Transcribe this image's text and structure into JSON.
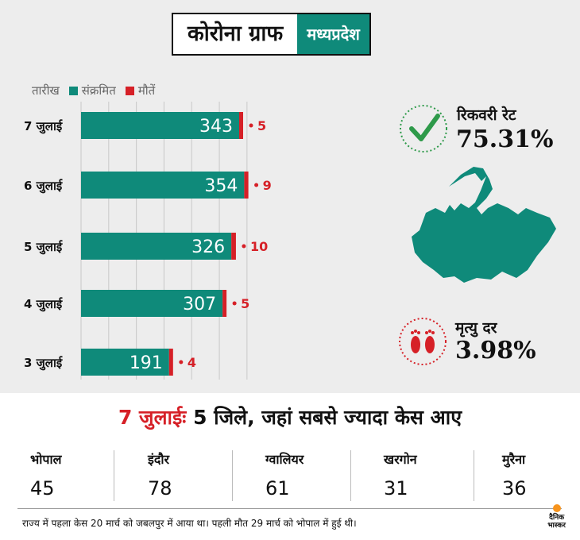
{
  "title": {
    "main": "कोरोना ग्राफ",
    "state": "मध्यप्रदेश"
  },
  "legend": {
    "date": "तारीख",
    "infected": "संक्रमित",
    "deaths": "मौतें"
  },
  "colors": {
    "infected": "#0f8a7a",
    "deaths": "#d62027",
    "state_box": "#0f8a7a"
  },
  "chart_data": {
    "type": "bar",
    "orientation": "horizontal",
    "stacked": true,
    "categories": [
      "7 जुलाई",
      "6 जुलाई",
      "5 जुलाई",
      "4 जुलाई",
      "3 जुलाई"
    ],
    "series": [
      {
        "name": "संक्रमित",
        "values": [
          343,
          354,
          326,
          307,
          191
        ]
      },
      {
        "name": "मौतें",
        "values": [
          5,
          9,
          10,
          5,
          4
        ]
      }
    ],
    "xlim": [
      0,
      360
    ],
    "grid": true
  },
  "recovery": {
    "label": "रिकवरी रेट",
    "value": "75.31%",
    "icon": "check-icon"
  },
  "mortality": {
    "label": "मृत्यु दर",
    "value": "3.98%",
    "icon": "footprints-icon"
  },
  "map": {
    "icon": "madhya-pradesh-map-icon"
  },
  "headline": {
    "date": "7 जुलाईः",
    "text": " 5 जिले, जहां सबसे ज्यादा केस आए"
  },
  "districts": [
    {
      "name": "भोपाल",
      "value": "45"
    },
    {
      "name": "इंदौर",
      "value": "78"
    },
    {
      "name": "ग्वालियर",
      "value": "61"
    },
    {
      "name": "खरगोन",
      "value": "31"
    },
    {
      "name": "मुरैना",
      "value": "36"
    }
  ],
  "footnote": "राज्य में पहला केस 20 मार्च को जबलपुर में आया था। पहली मौत 29 मार्च को भोपाल में हुई थी।",
  "brand": {
    "line1": "दैनिक",
    "line2": "भास्कर"
  }
}
